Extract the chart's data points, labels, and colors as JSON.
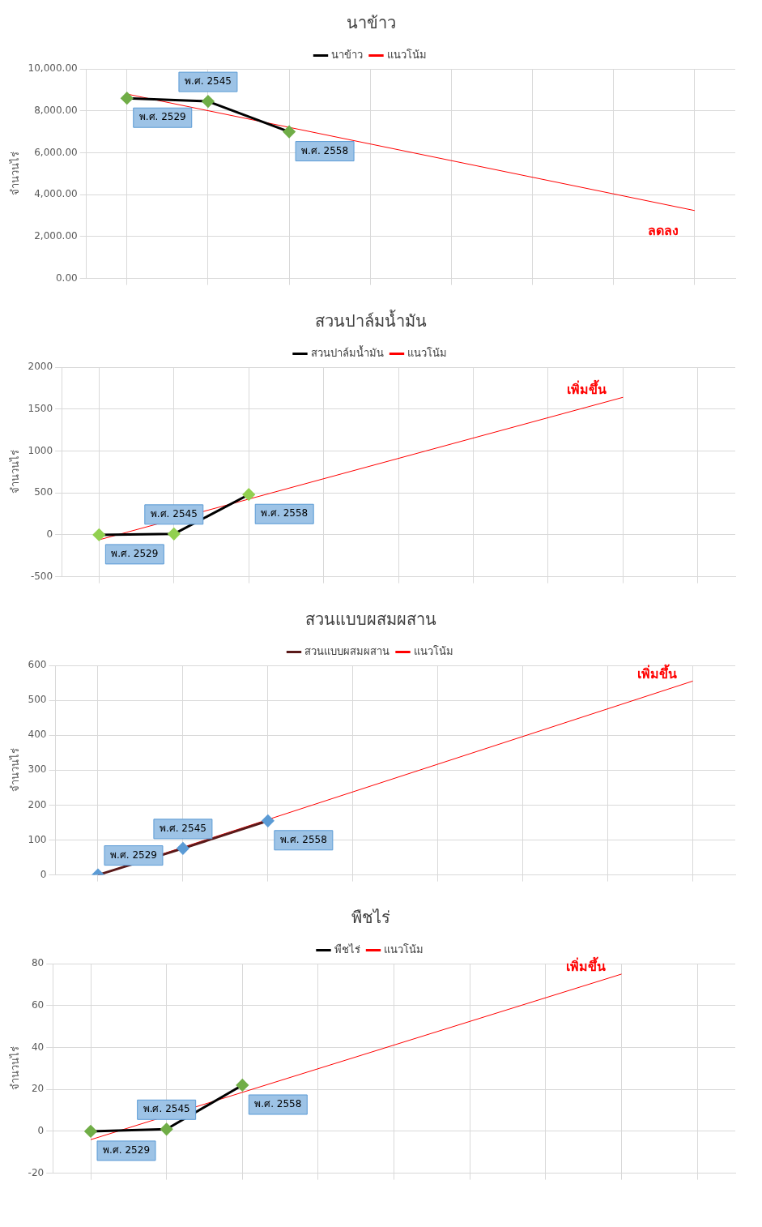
{
  "chart_data": [
    {
      "type": "line",
      "title": "นาข้าว",
      "ylabel": "จำนวนไร่",
      "categories": [
        null,
        null,
        null,
        null,
        null,
        null,
        null,
        null
      ],
      "ylim": [
        0,
        10000
      ],
      "yticks": [
        {
          "value": 0,
          "label": "0.00"
        },
        {
          "value": 2000,
          "label": "2,000.00"
        },
        {
          "value": 4000,
          "label": "4,000.00"
        },
        {
          "value": 6000,
          "label": "6,000.00"
        },
        {
          "value": 8000,
          "label": "8,000.00"
        },
        {
          "value": 10000,
          "label": "10,000.00"
        }
      ],
      "grid": true,
      "legend": "top",
      "marker": "diamond",
      "series": [
        {
          "name": "นาข้าว",
          "color": "#000000",
          "colors": [
            "#70ad47",
            "#70ad47",
            "#70ad47",
            null,
            null,
            null,
            null,
            null
          ],
          "values": [
            8600,
            8450,
            7000,
            null,
            null,
            null,
            null,
            null
          ]
        },
        {
          "name": "แนวโน้ม",
          "color": "#ff0000",
          "values": [
            8800,
            null,
            null,
            null,
            null,
            null,
            null,
            3240
          ],
          "marker": "none"
        }
      ],
      "annotations": [
        "พ.ศ. 2529",
        "พ.ศ. 2545",
        "พ.ศ. 2558",
        "ลดลง"
      ]
    },
    {
      "type": "line",
      "title": "สวนปาล์มน้ำมัน",
      "ylabel": "จำนวนไร่",
      "categories": [
        null,
        null,
        null,
        null,
        null,
        null,
        null,
        null,
        null
      ],
      "ylim": [
        -500,
        2000
      ],
      "yticks": [
        -500,
        0,
        500,
        1000,
        1500,
        2000
      ],
      "grid": true,
      "legend": "top",
      "marker": "diamond",
      "series": [
        {
          "name": "สวนปาล์มน้ำมัน",
          "color": "#000000",
          "colors": [
            "#92d050",
            "#92d050",
            "#92d050",
            null,
            null,
            null,
            null,
            null,
            null
          ],
          "values": [
            0,
            10,
            480,
            null,
            null,
            null,
            null,
            null,
            null
          ]
        },
        {
          "name": "แนวโน้ม",
          "color": "#ff0000",
          "values": [
            -60,
            null,
            null,
            null,
            null,
            null,
            null,
            1640,
            null
          ],
          "marker": "none"
        }
      ],
      "annotations": [
        "พ.ศ. 2529",
        "พ.ศ. 2545",
        "พ.ศ. 2558",
        "เพิ่มขึ้น"
      ]
    },
    {
      "type": "line",
      "title": "สวนแบบผสมผสาน",
      "ylabel": "จำนวนไร่",
      "categories": [
        null,
        null,
        null,
        null,
        null,
        null,
        null,
        null
      ],
      "ylim": [
        0,
        600
      ],
      "yticks": [
        0,
        100,
        200,
        300,
        400,
        500,
        600
      ],
      "grid": true,
      "legend": "top",
      "marker": "diamond",
      "series": [
        {
          "name": "สวนแบบผสมผสาน",
          "color": "#5a1a1a",
          "colors": [
            "#5b9bd5",
            "#5b9bd5",
            "#5b9bd5",
            null,
            null,
            null,
            null,
            null
          ],
          "values": [
            0,
            76,
            155,
            null,
            null,
            null,
            null,
            null
          ]
        },
        {
          "name": "แนวโน้ม",
          "color": "#ff0000",
          "values": [
            0,
            null,
            null,
            null,
            null,
            null,
            null,
            555
          ],
          "marker": "none"
        }
      ],
      "annotations": [
        "พ.ศ. 2529",
        "พ.ศ. 2545",
        "พ.ศ. 2558",
        "เพิ่มขึ้น"
      ]
    },
    {
      "type": "line",
      "title": "พืชไร่",
      "ylabel": "จำนวนไร่",
      "categories": [
        null,
        null,
        null,
        null,
        null,
        null,
        null,
        null,
        null
      ],
      "ylim": [
        -20,
        80
      ],
      "yticks": [
        -20,
        0,
        20,
        40,
        60,
        80
      ],
      "grid": true,
      "legend": "top",
      "marker": "diamond",
      "series": [
        {
          "name": "พืชไร่",
          "color": "#000000",
          "colors": [
            "#70ad47",
            "#70ad47",
            "#70ad47",
            null,
            null,
            null,
            null,
            null,
            null
          ],
          "values": [
            0,
            1,
            22,
            null,
            null,
            null,
            null,
            null,
            null
          ]
        },
        {
          "name": "แนวโน้ม",
          "color": "#ff0000",
          "values": [
            -4,
            null,
            null,
            null,
            null,
            null,
            null,
            75,
            null
          ],
          "marker": "none"
        }
      ],
      "annotations": [
        "พ.ศ. 2529",
        "พ.ศ. 2545",
        "พ.ศ. 2558",
        "เพิ่มขึ้น"
      ]
    }
  ]
}
